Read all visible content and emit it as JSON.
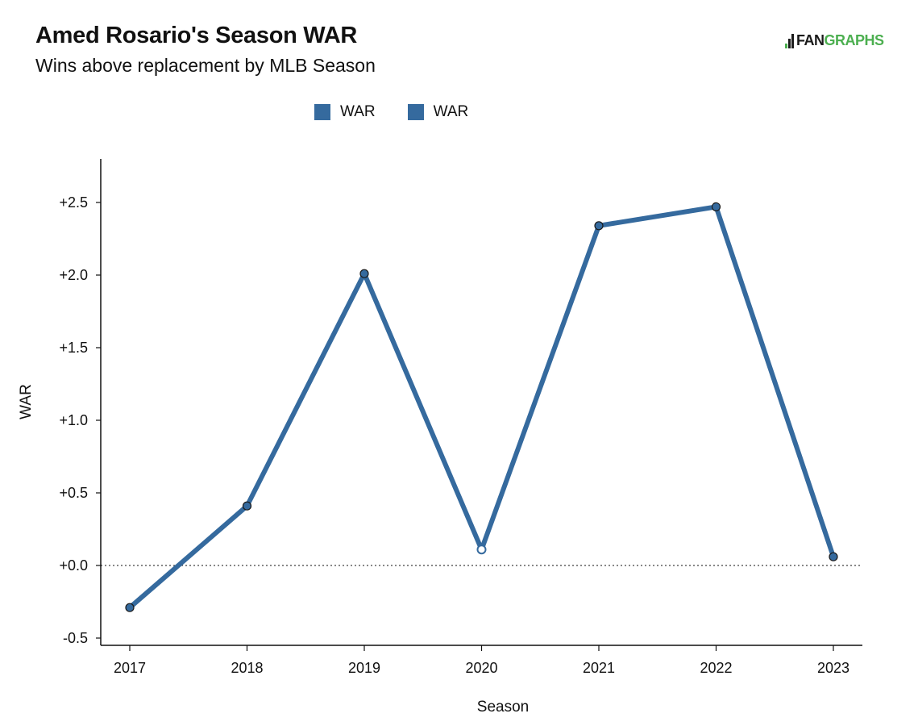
{
  "header": {
    "title": "Amed Rosario's Season WAR",
    "subtitle": "Wins above replacement by MLB Season",
    "logo_text_dark": "FAN",
    "logo_text_green": "GRAPHS"
  },
  "colors": {
    "series": "#356a9e",
    "marker_stroke": "#1a1a1a",
    "logo_green": "#4caf50"
  },
  "legend": [
    "WAR",
    "WAR"
  ],
  "chart_data": {
    "type": "line",
    "title": "Amed Rosario's Season WAR",
    "subtitle": "Wins above replacement by MLB Season",
    "xlabel": "Season",
    "ylabel": "WAR",
    "x": [
      2017,
      2018,
      2019,
      2020,
      2021,
      2022,
      2023
    ],
    "series": [
      {
        "name": "WAR",
        "values": [
          -0.29,
          0.41,
          2.01,
          0.11,
          2.34,
          2.47,
          0.06
        ]
      }
    ],
    "hollow_points": [
      2020
    ],
    "ylim": [
      -0.55,
      2.8
    ],
    "yticks": [
      -0.5,
      0.0,
      0.5,
      1.0,
      1.5,
      2.0,
      2.5
    ],
    "ytick_labels": [
      "-0.5",
      "+0.0",
      "+0.5",
      "+1.0",
      "+1.5",
      "+2.0",
      "+2.5"
    ],
    "xtick_labels": [
      "2017",
      "2018",
      "2019",
      "2020",
      "2021",
      "2022",
      "2023"
    ],
    "reference_line": 0,
    "grid": false,
    "legend_position": "top-center"
  }
}
